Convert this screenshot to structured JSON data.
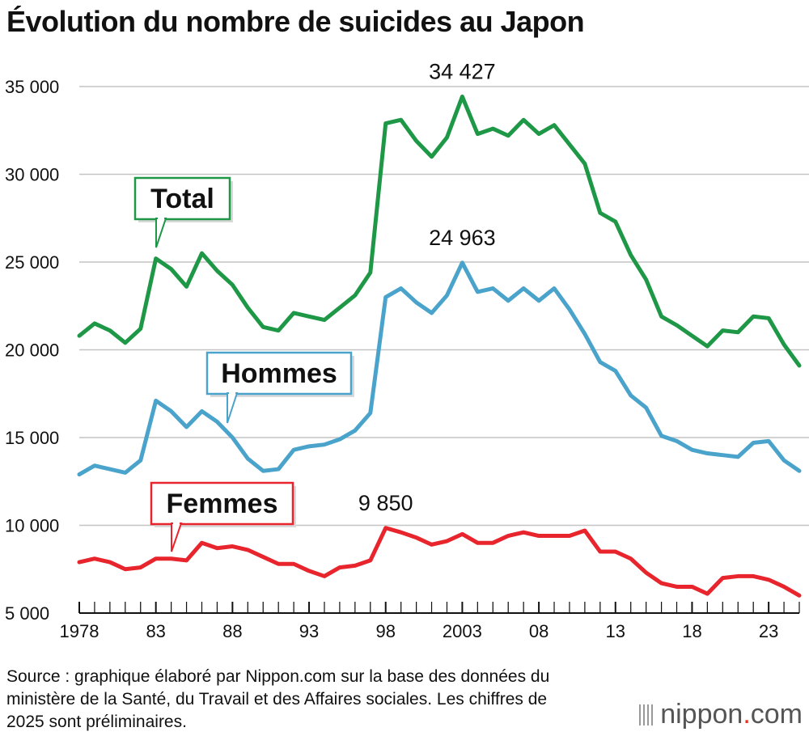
{
  "title": "Évolution du nombre de suicides au Japon",
  "source": "Source : graphique élaboré par Nippon.com sur la base des données du ministère de la Santé, du Travail et des Affaires sociales. Les chiffres de 2025 sont préliminaires.",
  "logo": {
    "name": "nippon",
    "dot": ".",
    "suffix": "com"
  },
  "chart_data": {
    "type": "line",
    "title": "Évolution du nombre de suicides au Japon",
    "xlabel": "",
    "ylabel": "",
    "x": [
      1978,
      1979,
      1980,
      1981,
      1982,
      1983,
      1984,
      1985,
      1986,
      1987,
      1988,
      1989,
      1990,
      1991,
      1992,
      1993,
      1994,
      1995,
      1996,
      1997,
      1998,
      1999,
      2000,
      2001,
      2002,
      2003,
      2004,
      2005,
      2006,
      2007,
      2008,
      2009,
      2010,
      2011,
      2012,
      2013,
      2014,
      2015,
      2016,
      2017,
      2018,
      2019,
      2020,
      2021,
      2022,
      2023,
      2024,
      2025
    ],
    "xlim": [
      1978,
      2025
    ],
    "ylim": [
      5000,
      35000
    ],
    "y_ticks": [
      5000,
      10000,
      15000,
      20000,
      25000,
      30000,
      35000
    ],
    "y_tick_labels": [
      "5 000",
      "10 000",
      "15 000",
      "20 000",
      "25 000",
      "30 000",
      "35 000"
    ],
    "x_ticks": [
      1978,
      1983,
      1988,
      1993,
      1998,
      2003,
      2008,
      2013,
      2018,
      2023
    ],
    "x_tick_labels": [
      "1978",
      "83",
      "88",
      "93",
      "98",
      "2003",
      "08",
      "13",
      "18",
      "23"
    ],
    "grid": true,
    "series": [
      {
        "name": "Total",
        "color": "#1e9846",
        "values": [
          20800,
          21500,
          21100,
          20400,
          21200,
          25200,
          24600,
          23600,
          25500,
          24500,
          23700,
          22400,
          21300,
          21100,
          22100,
          21900,
          21700,
          22400,
          23100,
          24400,
          32900,
          33100,
          31900,
          31000,
          32100,
          34427,
          32300,
          32600,
          32200,
          33100,
          32300,
          32800,
          31700,
          30600,
          27800,
          27300,
          25400,
          24000,
          21900,
          21400,
          20800,
          20200,
          21100,
          21000,
          21900,
          21800,
          20300,
          19100
        ]
      },
      {
        "name": "Hommes",
        "color": "#4aa3cb",
        "values": [
          12900,
          13400,
          13200,
          13000,
          13700,
          17100,
          16500,
          15600,
          16500,
          15900,
          15000,
          13800,
          13100,
          13200,
          14300,
          14500,
          14600,
          14900,
          15400,
          16400,
          23000,
          23500,
          22700,
          22100,
          23100,
          24963,
          23300,
          23500,
          22800,
          23500,
          22800,
          23500,
          22300,
          20900,
          19300,
          18800,
          17400,
          16700,
          15100,
          14800,
          14300,
          14100,
          14000,
          13900,
          14700,
          14800,
          13700,
          13100
        ]
      },
      {
        "name": "Femmes",
        "color": "#e8242d",
        "values": [
          7900,
          8100,
          7900,
          7500,
          7600,
          8100,
          8100,
          8000,
          9000,
          8700,
          8800,
          8600,
          8200,
          7800,
          7800,
          7400,
          7100,
          7600,
          7700,
          8000,
          9850,
          9600,
          9300,
          8900,
          9100,
          9500,
          9000,
          9000,
          9400,
          9600,
          9400,
          9400,
          9400,
          9700,
          8500,
          8500,
          8100,
          7300,
          6700,
          6500,
          6500,
          6100,
          7000,
          7100,
          7100,
          6900,
          6500,
          6000
        ]
      }
    ],
    "annotations": [
      {
        "x": 2003,
        "y": 34427,
        "text": "34 427"
      },
      {
        "x": 2003,
        "y": 24963,
        "text": "24 963"
      },
      {
        "x": 1998,
        "y": 9850,
        "text": "9 850"
      }
    ],
    "series_labels": [
      {
        "series": "Total",
        "text": "Total",
        "color": "#1e9846"
      },
      {
        "series": "Hommes",
        "text": "Hommes",
        "color": "#4aa3cb"
      },
      {
        "series": "Femmes",
        "text": "Femmes",
        "color": "#e8242d"
      }
    ],
    "legend": "none"
  }
}
